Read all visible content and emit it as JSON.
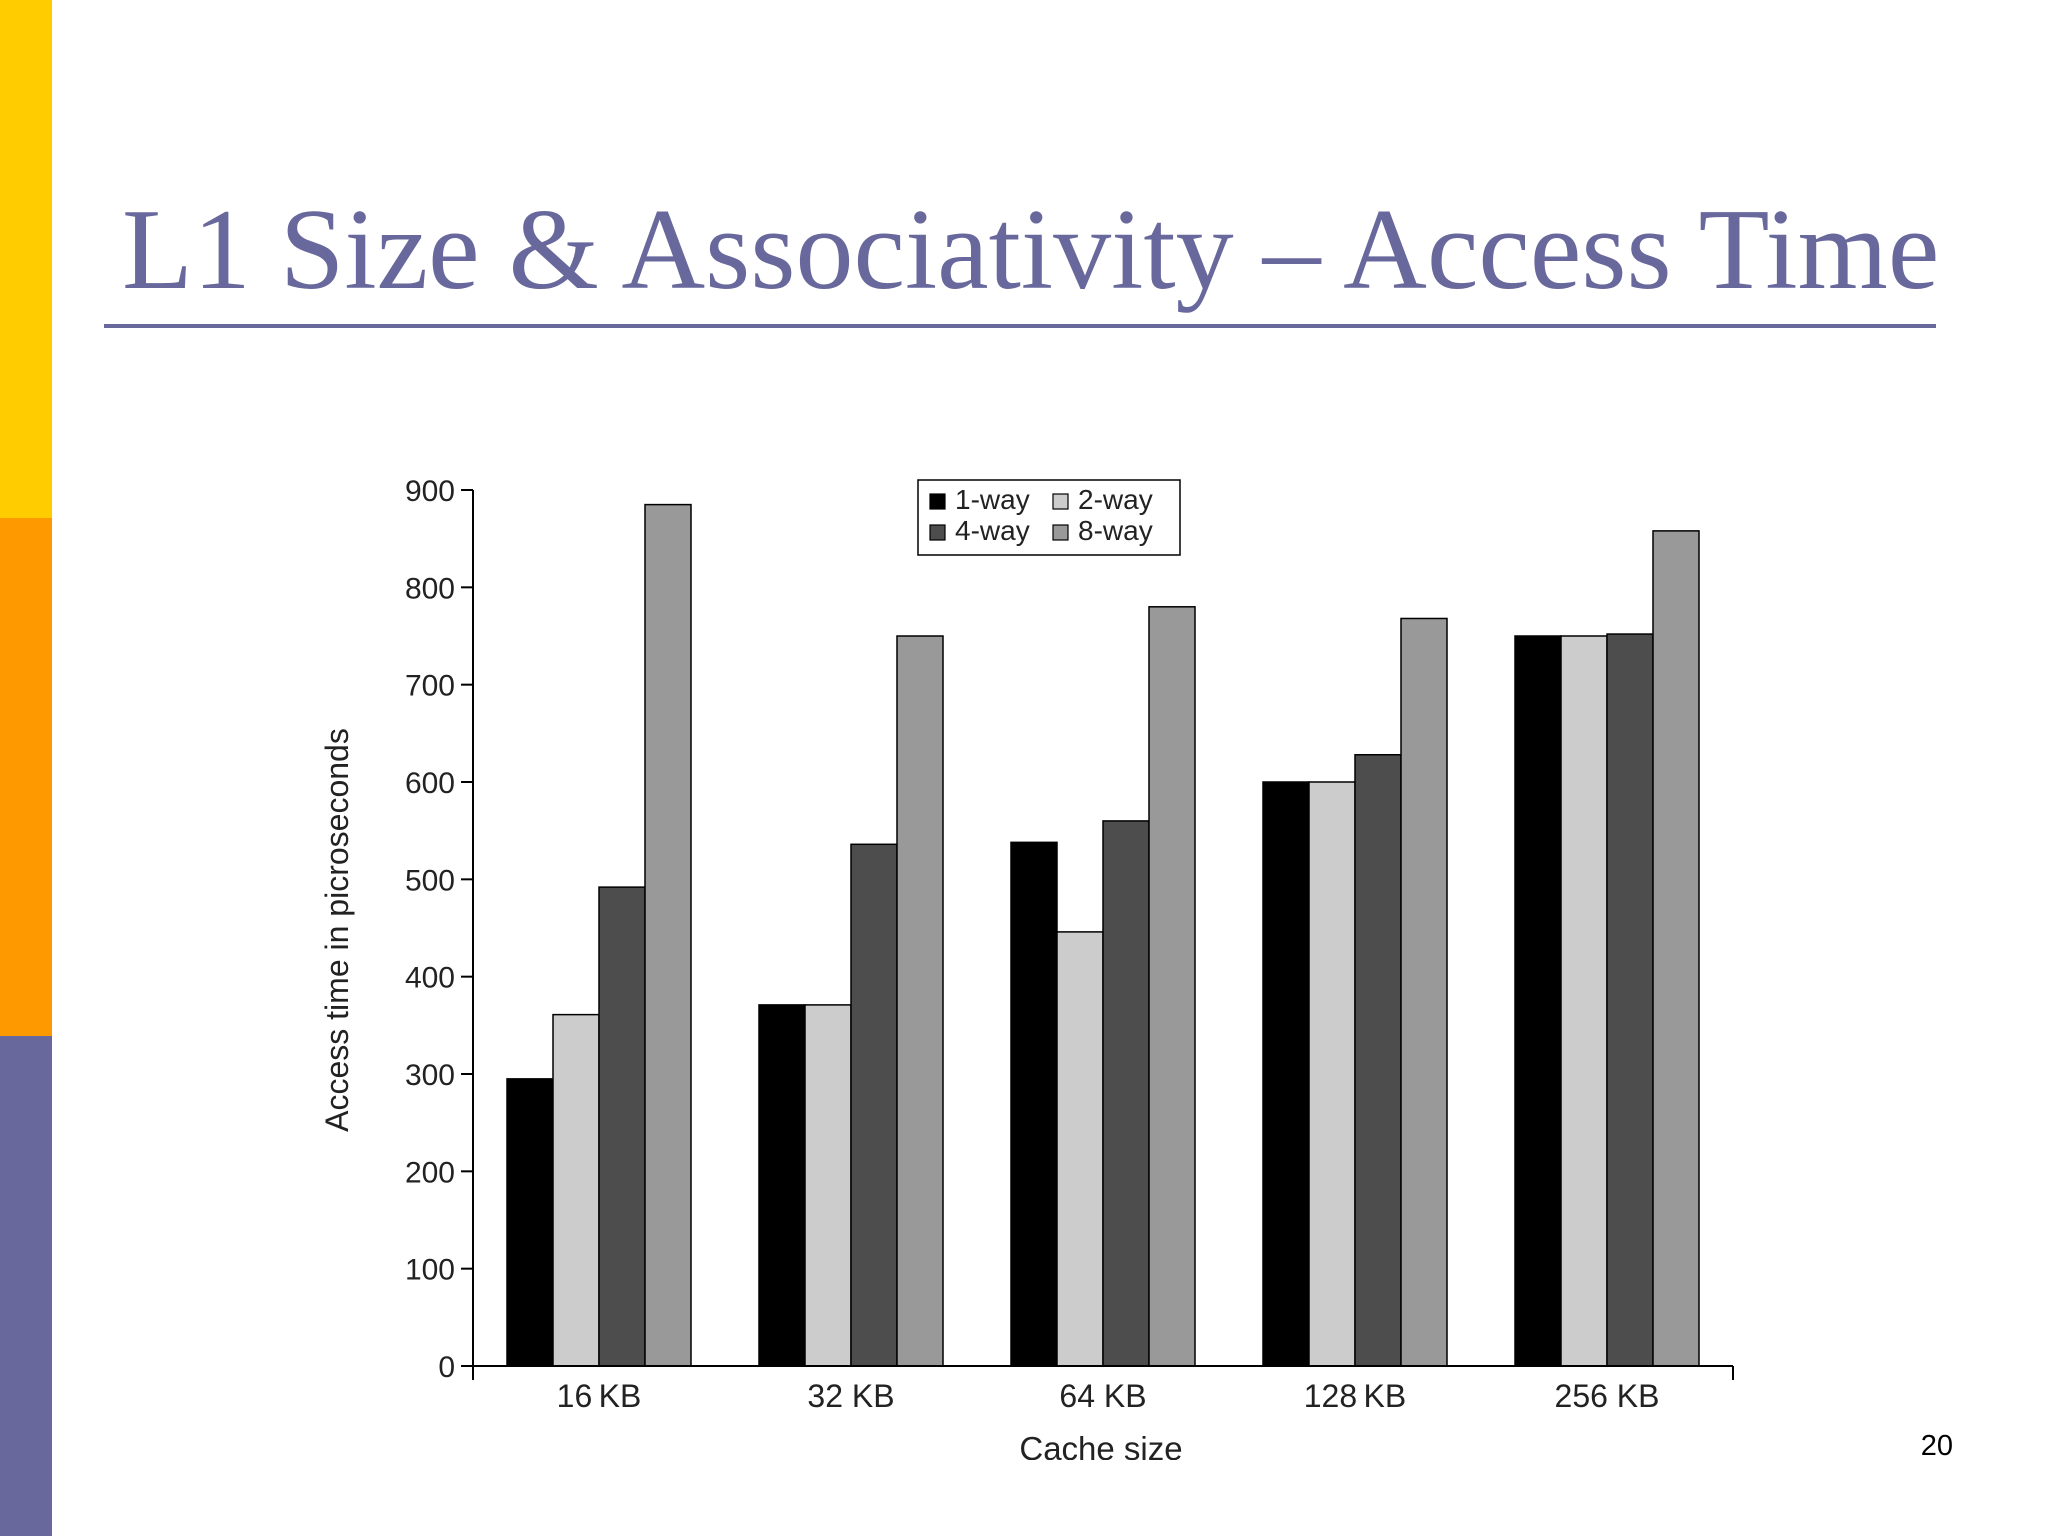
{
  "slide": {
    "title": "L1 Size & Associativity – Access Time",
    "page_number": "20",
    "colors": {
      "title": "#68689c",
      "rule": "#68689c",
      "sidebar_top": "#ffcc00",
      "sidebar_middle": "#ff9900",
      "sidebar_bottom": "#68689c"
    }
  },
  "chart_data": {
    "type": "bar",
    "title": "",
    "xlabel": "Cache size",
    "ylabel": "Access time in picroseconds",
    "categories": [
      "16 KB",
      "32 KB",
      "64 KB",
      "128 KB",
      "256 KB"
    ],
    "ylim": [
      0,
      900
    ],
    "yticks": [
      0,
      100,
      200,
      300,
      400,
      500,
      600,
      700,
      800,
      900
    ],
    "grid": false,
    "legend_position": "top-center",
    "series": [
      {
        "name": "1-way",
        "color": "#000000",
        "values": [
          295,
          371,
          538,
          600,
          750
        ]
      },
      {
        "name": "2-way",
        "color": "#cccccc",
        "values": [
          361,
          371,
          446,
          600,
          750
        ]
      },
      {
        "name": "4-way",
        "color": "#4d4d4d",
        "values": [
          492,
          536,
          560,
          628,
          752
        ]
      },
      {
        "name": "8-way",
        "color": "#999999",
        "values": [
          885,
          750,
          780,
          768,
          858
        ]
      }
    ]
  }
}
